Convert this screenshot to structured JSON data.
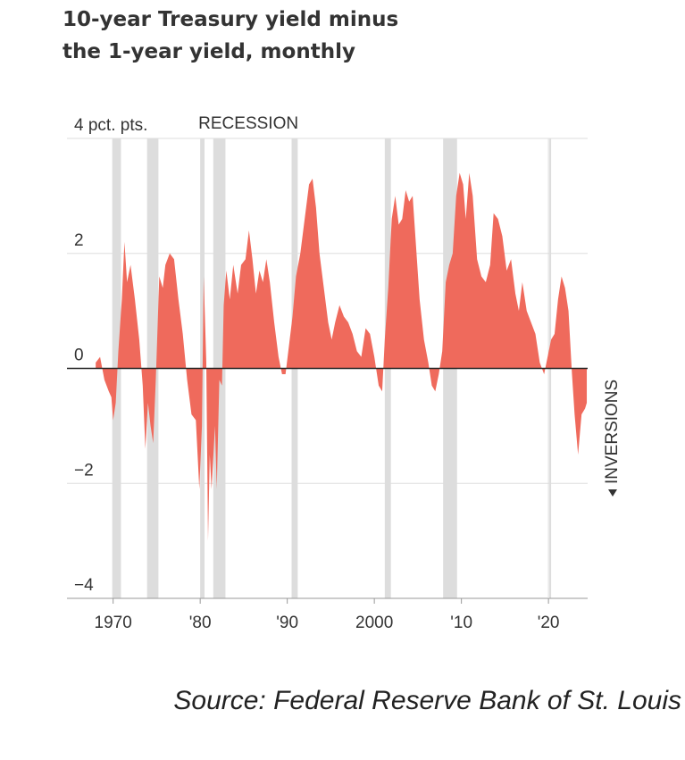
{
  "chart_data": {
    "type": "area",
    "title": "10-year Treasury yield minus the 1-year yield, monthly",
    "source": "Source: Federal Reserve Bank of St. Louis",
    "recession_label": "RECESSION",
    "annotation": "INVERSIONS",
    "color": "#ef6a5c",
    "recession_color": "#dddddd",
    "recessions": [
      [
        1969.9,
        1970.9
      ],
      [
        1973.9,
        1975.2
      ],
      [
        1980.0,
        1980.5
      ],
      [
        1981.5,
        1982.9
      ],
      [
        1990.5,
        1991.2
      ],
      [
        2001.2,
        2001.9
      ],
      [
        2007.9,
        2009.5
      ],
      [
        2020.1,
        2020.3
      ]
    ],
    "xlim": [
      1964.7,
      2024.5
    ],
    "xticks": [
      {
        "value": 1970,
        "label": "1970"
      },
      {
        "value": 1980,
        "label": "'80"
      },
      {
        "value": 1990,
        "label": "'90"
      },
      {
        "value": 2000,
        "label": "2000"
      },
      {
        "value": 2010,
        "label": "'10"
      },
      {
        "value": 2020,
        "label": "'20"
      }
    ],
    "ylim": [
      -4,
      4
    ],
    "yticks": [
      {
        "value": -4,
        "label": "−4"
      },
      {
        "value": -2,
        "label": "−2"
      },
      0,
      2,
      {
        "value": 4,
        "label": "4 pct. pts."
      }
    ],
    "grid": true,
    "x": [
      1968.0,
      1968.5,
      1969.0,
      1969.5,
      1969.8,
      1970.0,
      1970.3,
      1970.6,
      1971.0,
      1971.3,
      1971.6,
      1972.0,
      1972.5,
      1973.0,
      1973.4,
      1973.7,
      1974.0,
      1974.3,
      1974.6,
      1974.9,
      1975.3,
      1975.7,
      1976.0,
      1976.5,
      1977.0,
      1977.5,
      1978.0,
      1978.5,
      1979.0,
      1979.5,
      1979.9,
      1980.2,
      1980.4,
      1980.7,
      1980.9,
      1981.1,
      1981.3,
      1981.7,
      1981.9,
      1982.2,
      1982.5,
      1982.7,
      1983.0,
      1983.4,
      1983.8,
      1984.3,
      1984.7,
      1985.2,
      1985.6,
      1986.0,
      1986.4,
      1986.8,
      1987.2,
      1987.6,
      1988.0,
      1988.5,
      1989.0,
      1989.4,
      1989.8,
      1990.2,
      1990.6,
      1991.0,
      1991.5,
      1992.0,
      1992.5,
      1992.9,
      1993.3,
      1993.7,
      1994.2,
      1994.7,
      1995.1,
      1995.5,
      1996.0,
      1996.5,
      1997.0,
      1997.5,
      1998.0,
      1998.5,
      1999.0,
      1999.5,
      2000.0,
      2000.5,
      2000.9,
      2001.2,
      2001.6,
      2002.0,
      2002.4,
      2002.8,
      2003.2,
      2003.6,
      2004.0,
      2004.4,
      2004.8,
      2005.2,
      2005.7,
      2006.2,
      2006.6,
      2007.0,
      2007.4,
      2007.8,
      2008.2,
      2008.6,
      2009.0,
      2009.4,
      2009.8,
      2010.2,
      2010.5,
      2010.9,
      2011.3,
      2011.8,
      2012.3,
      2012.8,
      2013.3,
      2013.7,
      2014.2,
      2014.7,
      2015.2,
      2015.7,
      2016.2,
      2016.6,
      2017.0,
      2017.5,
      2018.0,
      2018.5,
      2019.0,
      2019.5,
      2019.9,
      2020.3,
      2020.7,
      2021.1,
      2021.5,
      2021.9,
      2022.3,
      2022.7,
      2023.0,
      2023.4,
      2023.8,
      2024.2,
      2024.4
    ],
    "values": [
      0.1,
      0.2,
      -0.2,
      -0.4,
      -0.5,
      -0.9,
      -0.6,
      0.3,
      1.2,
      2.2,
      1.5,
      1.8,
      1.2,
      0.5,
      -0.3,
      -1.4,
      -0.6,
      -1.0,
      -1.3,
      -0.2,
      1.6,
      1.4,
      1.8,
      2.0,
      1.9,
      1.2,
      0.6,
      -0.2,
      -0.8,
      -0.9,
      -2.1,
      -1.0,
      1.6,
      0.1,
      -3.0,
      -1.5,
      -2.1,
      -1.0,
      -2.1,
      -0.2,
      -0.3,
      1.1,
      1.7,
      1.2,
      1.8,
      1.3,
      1.8,
      1.9,
      2.4,
      1.9,
      1.3,
      1.7,
      1.5,
      1.9,
      1.5,
      0.8,
      0.2,
      -0.1,
      -0.1,
      0.4,
      0.9,
      1.6,
      2.0,
      2.6,
      3.2,
      3.3,
      2.8,
      2.0,
      1.4,
      0.8,
      0.5,
      0.8,
      1.1,
      0.9,
      0.8,
      0.6,
      0.3,
      0.2,
      0.7,
      0.6,
      0.2,
      -0.3,
      -0.4,
      0.5,
      1.4,
      2.6,
      3.0,
      2.5,
      2.6,
      3.1,
      2.9,
      3.0,
      2.1,
      1.2,
      0.5,
      0.1,
      -0.3,
      -0.4,
      -0.1,
      0.3,
      1.5,
      1.8,
      2.0,
      3.0,
      3.4,
      3.2,
      2.6,
      3.4,
      3.0,
      1.9,
      1.6,
      1.5,
      1.8,
      2.7,
      2.6,
      2.3,
      1.7,
      1.9,
      1.3,
      1.0,
      1.5,
      1.0,
      0.8,
      0.6,
      0.1,
      -0.1,
      0.2,
      0.5,
      0.6,
      1.2,
      1.6,
      1.4,
      1.0,
      -0.1,
      -0.8,
      -1.5,
      -0.8,
      -0.7,
      -0.6
    ]
  }
}
